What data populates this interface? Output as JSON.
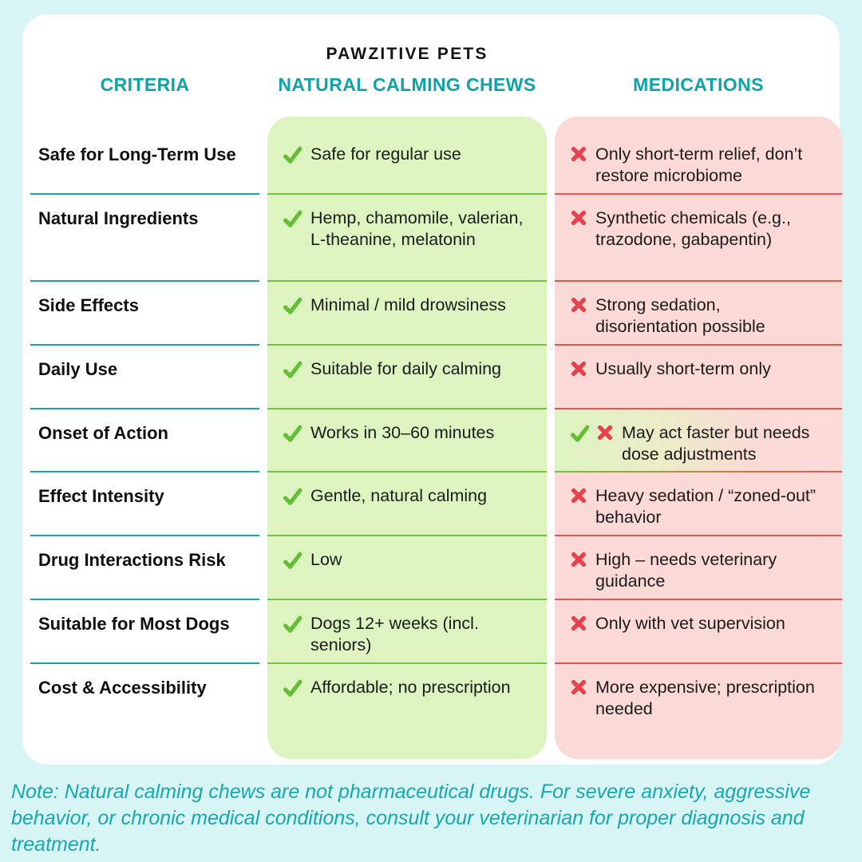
{
  "brand": "PAWZITIVE PETS",
  "columns": {
    "criteria": "CRITERIA",
    "chews": "NATURAL CALMING CHEWS",
    "meds": "MEDICATIONS"
  },
  "colors": {
    "canvas_bg": "#d8f5f6",
    "card_bg": "#ffffff",
    "accent_teal": "#0da3a9",
    "green_bg": "#ddf4c0",
    "pink_bg": "#fbd9d7",
    "green_line": "#74c43e",
    "red_line": "#f15150",
    "check_green": "#65bd38",
    "cross_red": "#e8414b",
    "text_dark": "#1b1b1b"
  },
  "rows": [
    {
      "criteria": "Safe for Long-Term Use",
      "chews": {
        "icons": [
          "check-icon"
        ],
        "text": "Safe for regular use"
      },
      "meds": {
        "icons": [
          "cross-icon"
        ],
        "text": "Only short-term relief, don’t restore microbiome",
        "gradient": false
      }
    },
    {
      "criteria": "Natural Ingredients",
      "chews": {
        "icons": [
          "check-icon"
        ],
        "text": "Hemp, chamomile, valerian, L-theanine, melatonin"
      },
      "meds": {
        "icons": [
          "cross-icon"
        ],
        "text": "Synthetic chemicals (e.g., trazodone, gabapentin)",
        "gradient": false
      }
    },
    {
      "criteria": "Side Effects",
      "chews": {
        "icons": [
          "check-icon"
        ],
        "text": "Minimal / mild drowsiness"
      },
      "meds": {
        "icons": [
          "cross-icon"
        ],
        "text": "Strong sedation, disorientation possible",
        "gradient": false
      }
    },
    {
      "criteria": "Daily Use",
      "chews": {
        "icons": [
          "check-icon"
        ],
        "text": "Suitable for daily calming"
      },
      "meds": {
        "icons": [
          "cross-icon"
        ],
        "text": "Usually short-term only",
        "gradient": false
      }
    },
    {
      "criteria": "Onset of Action",
      "chews": {
        "icons": [
          "check-icon"
        ],
        "text": "Works in 30–60 minutes"
      },
      "meds": {
        "icons": [
          "check-icon",
          "cross-icon"
        ],
        "text": "May act faster but needs dose adjustments",
        "gradient": true
      }
    },
    {
      "criteria": "Effect Intensity",
      "chews": {
        "icons": [
          "check-icon"
        ],
        "text": "Gentle, natural calming"
      },
      "meds": {
        "icons": [
          "cross-icon"
        ],
        "text": "Heavy sedation / “zoned-out” behavior",
        "gradient": false
      }
    },
    {
      "criteria": "Drug Interactions Risk",
      "chews": {
        "icons": [
          "check-icon"
        ],
        "text": "Low"
      },
      "meds": {
        "icons": [
          "cross-icon"
        ],
        "text": "High – needs veterinary guidance",
        "gradient": false
      }
    },
    {
      "criteria": "Suitable for Most Dogs",
      "chews": {
        "icons": [
          "check-icon"
        ],
        "text": "Dogs 12+ weeks (incl. seniors)"
      },
      "meds": {
        "icons": [
          "cross-icon"
        ],
        "text": "Only with vet supervision",
        "gradient": false
      }
    },
    {
      "criteria": "Cost & Accessibility",
      "chews": {
        "icons": [
          "check-icon"
        ],
        "text": "Affordable; no prescription"
      },
      "meds": {
        "icons": [
          "cross-icon"
        ],
        "text": "More expensive; prescription needed",
        "gradient": false
      }
    }
  ],
  "note": "Note: Natural calming chews are not pharmaceutical drugs. For severe anxiety, aggressive behavior, or chronic medical conditions, consult your veterinarian for proper diagnosis and treatment."
}
